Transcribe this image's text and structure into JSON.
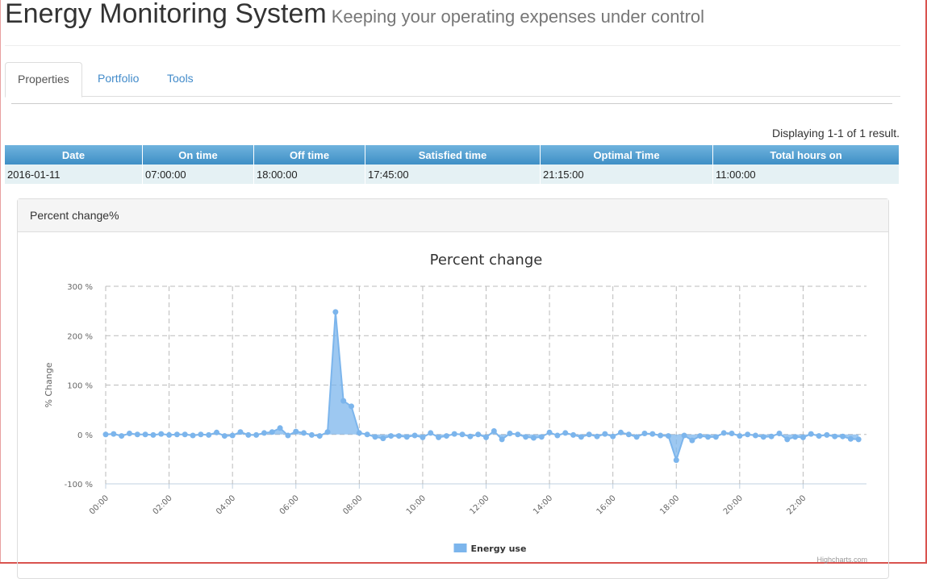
{
  "header": {
    "title": "Energy Monitoring System",
    "subtitle": "Keeping your operating expenses under control"
  },
  "tabs": [
    {
      "label": "Properties",
      "active": true
    },
    {
      "label": "Portfolio",
      "active": false
    },
    {
      "label": "Tools",
      "active": false
    }
  ],
  "summary": "Displaying 1-1 of 1 result.",
  "table": {
    "columns": [
      "Date",
      "On time",
      "Off time",
      "Satisfied time",
      "Optimal Time",
      "Total hours on"
    ],
    "rows": [
      [
        "2016-01-11",
        "07:00:00",
        "18:00:00",
        "17:45:00",
        "21:15:00",
        "11:00:00"
      ]
    ]
  },
  "panel": {
    "heading": "Percent change%"
  },
  "colors": {
    "series": "#7cb5ec",
    "header_gradient_top": "#6fb3de",
    "header_gradient_bottom": "#3e8fc6",
    "frame": "#d9534f"
  },
  "chart_data": {
    "type": "area",
    "title": "Percent change",
    "ylabel": "% Change",
    "xlabel": "",
    "ylim": [
      -100,
      300
    ],
    "yticks": [
      -100,
      0,
      100,
      200,
      300
    ],
    "ytick_labels": [
      "-100 %",
      "0 %",
      "100 %",
      "200 %",
      "300 %"
    ],
    "xlim_hours": [
      0,
      24
    ],
    "xtick_labels": [
      "00:00",
      "02:00",
      "04:00",
      "06:00",
      "08:00",
      "10:00",
      "12:00",
      "14:00",
      "16:00",
      "18:00",
      "20:00",
      "22:00"
    ],
    "x_interval_minutes": 15,
    "legend": "bottom-center",
    "grid": true,
    "credit": "Highcharts.com",
    "series": [
      {
        "name": "Energy use",
        "values": [
          0,
          1,
          -3,
          2,
          0,
          0,
          -1,
          1,
          -1,
          0,
          0,
          -2,
          0,
          -1,
          4,
          -3,
          -2,
          5,
          -1,
          -1,
          3,
          5,
          13,
          -2,
          6,
          3,
          -1,
          -3,
          5,
          248,
          68,
          57,
          3,
          0,
          -5,
          -8,
          -3,
          -3,
          -5,
          -2,
          -6,
          3,
          -6,
          -3,
          1,
          0,
          -4,
          0,
          -6,
          7,
          -10,
          2,
          0,
          -5,
          -7,
          -5,
          4,
          -2,
          3,
          -1,
          -5,
          0,
          -4,
          1,
          -4,
          4,
          0,
          -5,
          2,
          1,
          -2,
          -3,
          -52,
          -2,
          -12,
          -3,
          -5,
          -5,
          3,
          2,
          -3,
          0,
          -2,
          -5,
          -4,
          2,
          -10,
          -5,
          -6,
          1,
          -3,
          -1,
          -4,
          -4,
          -9,
          -10
        ]
      }
    ]
  }
}
